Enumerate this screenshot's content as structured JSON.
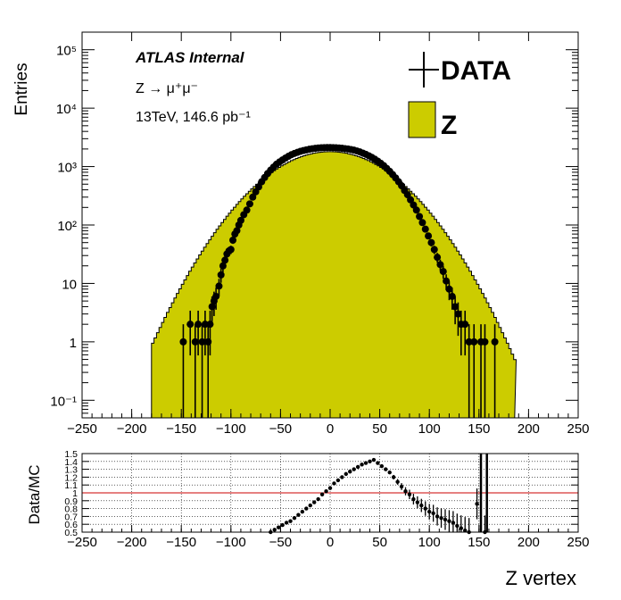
{
  "colors": {
    "mc_fill": "#cccc00",
    "mc_line": "#000000",
    "data": "#000000",
    "unity_line": "#cc0000",
    "grid": "#000000"
  },
  "labels": {
    "experiment": "ATLAS Internal",
    "process": "Z → μ⁺μ⁻",
    "energy": "13TeV, 146.6 pb⁻¹",
    "ylabel_main": "Entries",
    "ylabel_ratio": "Data/MC",
    "xlabel": "Z vertex",
    "legend_data": "DATA",
    "legend_mc": "Z"
  },
  "chart_data": [
    {
      "type": "histogram",
      "scale": "log",
      "xlim": [
        -250,
        250
      ],
      "ylim": [
        0.05,
        200000
      ],
      "x_ticks": [
        "−250",
        "−200",
        "−150",
        "−100",
        "−50",
        "0",
        "50",
        "100",
        "150",
        "200",
        "250"
      ],
      "y_ticks": [
        "10⁻¹",
        "1",
        "10",
        "10²",
        "10³",
        "10⁴",
        "10⁵"
      ],
      "legend": "top-right",
      "mc_gauss": {
        "mean": 0,
        "sigma": 46,
        "peak": 1800,
        "xmin": -180,
        "xmax": 186
      },
      "data_gauss": {
        "mean": 12,
        "sigma": 38,
        "peak": 2100
      },
      "data_points": [
        [
          -148,
          1
        ],
        [
          -141,
          2
        ],
        [
          -136,
          1
        ],
        [
          -133,
          2
        ],
        [
          -129,
          1
        ],
        [
          -126,
          2
        ],
        [
          -123,
          1
        ],
        [
          -121,
          2
        ],
        [
          -119,
          4
        ],
        [
          -117,
          5
        ],
        [
          -115,
          6
        ],
        [
          -112,
          9
        ],
        [
          -110,
          14
        ],
        [
          -108,
          20
        ],
        [
          -106,
          25
        ],
        [
          -104,
          32
        ],
        [
          -102,
          36
        ],
        [
          -100,
          38
        ],
        [
          -98,
          55
        ],
        [
          -96,
          70
        ],
        [
          -94,
          80
        ],
        [
          -92,
          100
        ],
        [
          -90,
          120
        ],
        [
          -87,
          150
        ],
        [
          -84,
          180
        ],
        [
          -81,
          230
        ],
        [
          -78,
          300
        ],
        [
          -75,
          370
        ],
        [
          -72,
          450
        ],
        [
          -69,
          550
        ],
        [
          -66,
          650
        ],
        [
          -63,
          760
        ],
        [
          -60,
          870
        ],
        [
          -57,
          980
        ],
        [
          -54,
          1100
        ],
        [
          -51,
          1200
        ],
        [
          -48,
          1300
        ],
        [
          -45,
          1400
        ],
        [
          -42,
          1500
        ],
        [
          -39,
          1600
        ],
        [
          -36,
          1680
        ],
        [
          -33,
          1750
        ],
        [
          -30,
          1820
        ],
        [
          -27,
          1880
        ],
        [
          -24,
          1930
        ],
        [
          -21,
          1980
        ],
        [
          -18,
          2020
        ],
        [
          -15,
          2050
        ],
        [
          -12,
          2080
        ],
        [
          -9,
          2100
        ],
        [
          -6,
          2110
        ],
        [
          -3,
          2120
        ],
        [
          0,
          2120
        ],
        [
          3,
          2110
        ],
        [
          6,
          2100
        ],
        [
          9,
          2080
        ],
        [
          12,
          2060
        ],
        [
          15,
          2030
        ],
        [
          18,
          2000
        ],
        [
          21,
          1960
        ],
        [
          24,
          1910
        ],
        [
          27,
          1850
        ],
        [
          30,
          1780
        ],
        [
          33,
          1700
        ],
        [
          36,
          1620
        ],
        [
          39,
          1530
        ],
        [
          42,
          1440
        ],
        [
          45,
          1340
        ],
        [
          48,
          1240
        ],
        [
          51,
          1140
        ],
        [
          54,
          1040
        ],
        [
          57,
          930
        ],
        [
          60,
          830
        ],
        [
          63,
          730
        ],
        [
          66,
          640
        ],
        [
          69,
          550
        ],
        [
          72,
          470
        ],
        [
          75,
          390
        ],
        [
          78,
          330
        ],
        [
          81,
          270
        ],
        [
          84,
          220
        ],
        [
          87,
          180
        ],
        [
          90,
          140
        ],
        [
          93,
          110
        ],
        [
          96,
          85
        ],
        [
          99,
          65
        ],
        [
          102,
          50
        ],
        [
          105,
          38
        ],
        [
          108,
          28
        ],
        [
          111,
          21
        ],
        [
          114,
          16
        ],
        [
          117,
          11
        ],
        [
          120,
          8
        ],
        [
          123,
          6
        ],
        [
          126,
          4
        ],
        [
          129,
          3
        ],
        [
          132,
          2
        ],
        [
          136,
          2
        ],
        [
          140,
          1
        ],
        [
          145,
          1
        ],
        [
          152,
          1
        ],
        [
          156,
          1
        ],
        [
          166,
          1
        ]
      ]
    },
    {
      "type": "scatter",
      "xlim": [
        -250,
        250
      ],
      "ylim": [
        0.5,
        1.5
      ],
      "x_ticks": [
        "−250",
        "−200",
        "−150",
        "−100",
        "−50",
        "0",
        "50",
        "100",
        "150",
        "200",
        "250"
      ],
      "y_ticks": [
        "0.5",
        "0.6",
        "0.7",
        "0.8",
        "0.9",
        "1",
        "1.1",
        "1.2",
        "1.3",
        "1.4",
        "1.5"
      ],
      "unity_line": 1.0,
      "points": [
        [
          -60,
          0.5
        ],
        [
          -56,
          0.53
        ],
        [
          -52,
          0.56
        ],
        [
          -48,
          0.59
        ],
        [
          -44,
          0.62
        ],
        [
          -40,
          0.64
        ],
        [
          -36,
          0.68
        ],
        [
          -32,
          0.72
        ],
        [
          -28,
          0.76
        ],
        [
          -24,
          0.8
        ],
        [
          -20,
          0.84
        ],
        [
          -16,
          0.88
        ],
        [
          -12,
          0.92
        ],
        [
          -8,
          0.98
        ],
        [
          -4,
          1.02
        ],
        [
          0,
          1.06
        ],
        [
          4,
          1.12
        ],
        [
          8,
          1.16
        ],
        [
          12,
          1.2
        ],
        [
          16,
          1.24
        ],
        [
          20,
          1.27
        ],
        [
          24,
          1.3
        ],
        [
          28,
          1.33
        ],
        [
          32,
          1.36
        ],
        [
          36,
          1.38
        ],
        [
          40,
          1.4
        ],
        [
          44,
          1.42
        ],
        [
          48,
          1.38
        ],
        [
          52,
          1.34
        ],
        [
          56,
          1.3
        ],
        [
          60,
          1.26
        ],
        [
          64,
          1.2
        ],
        [
          68,
          1.14
        ],
        [
          72,
          1.08
        ],
        [
          76,
          1.02
        ],
        [
          80,
          0.98
        ],
        [
          84,
          0.92
        ],
        [
          88,
          0.88
        ],
        [
          92,
          0.84
        ],
        [
          96,
          0.8
        ],
        [
          100,
          0.76
        ],
        [
          104,
          0.74
        ],
        [
          108,
          0.7
        ],
        [
          112,
          0.68
        ],
        [
          116,
          0.66
        ],
        [
          120,
          0.64
        ],
        [
          124,
          0.62
        ],
        [
          128,
          0.58
        ],
        [
          132,
          0.55
        ],
        [
          136,
          0.52
        ],
        [
          140,
          0.5
        ],
        [
          148,
          0.86
        ],
        [
          156,
          0.5
        ]
      ]
    }
  ]
}
